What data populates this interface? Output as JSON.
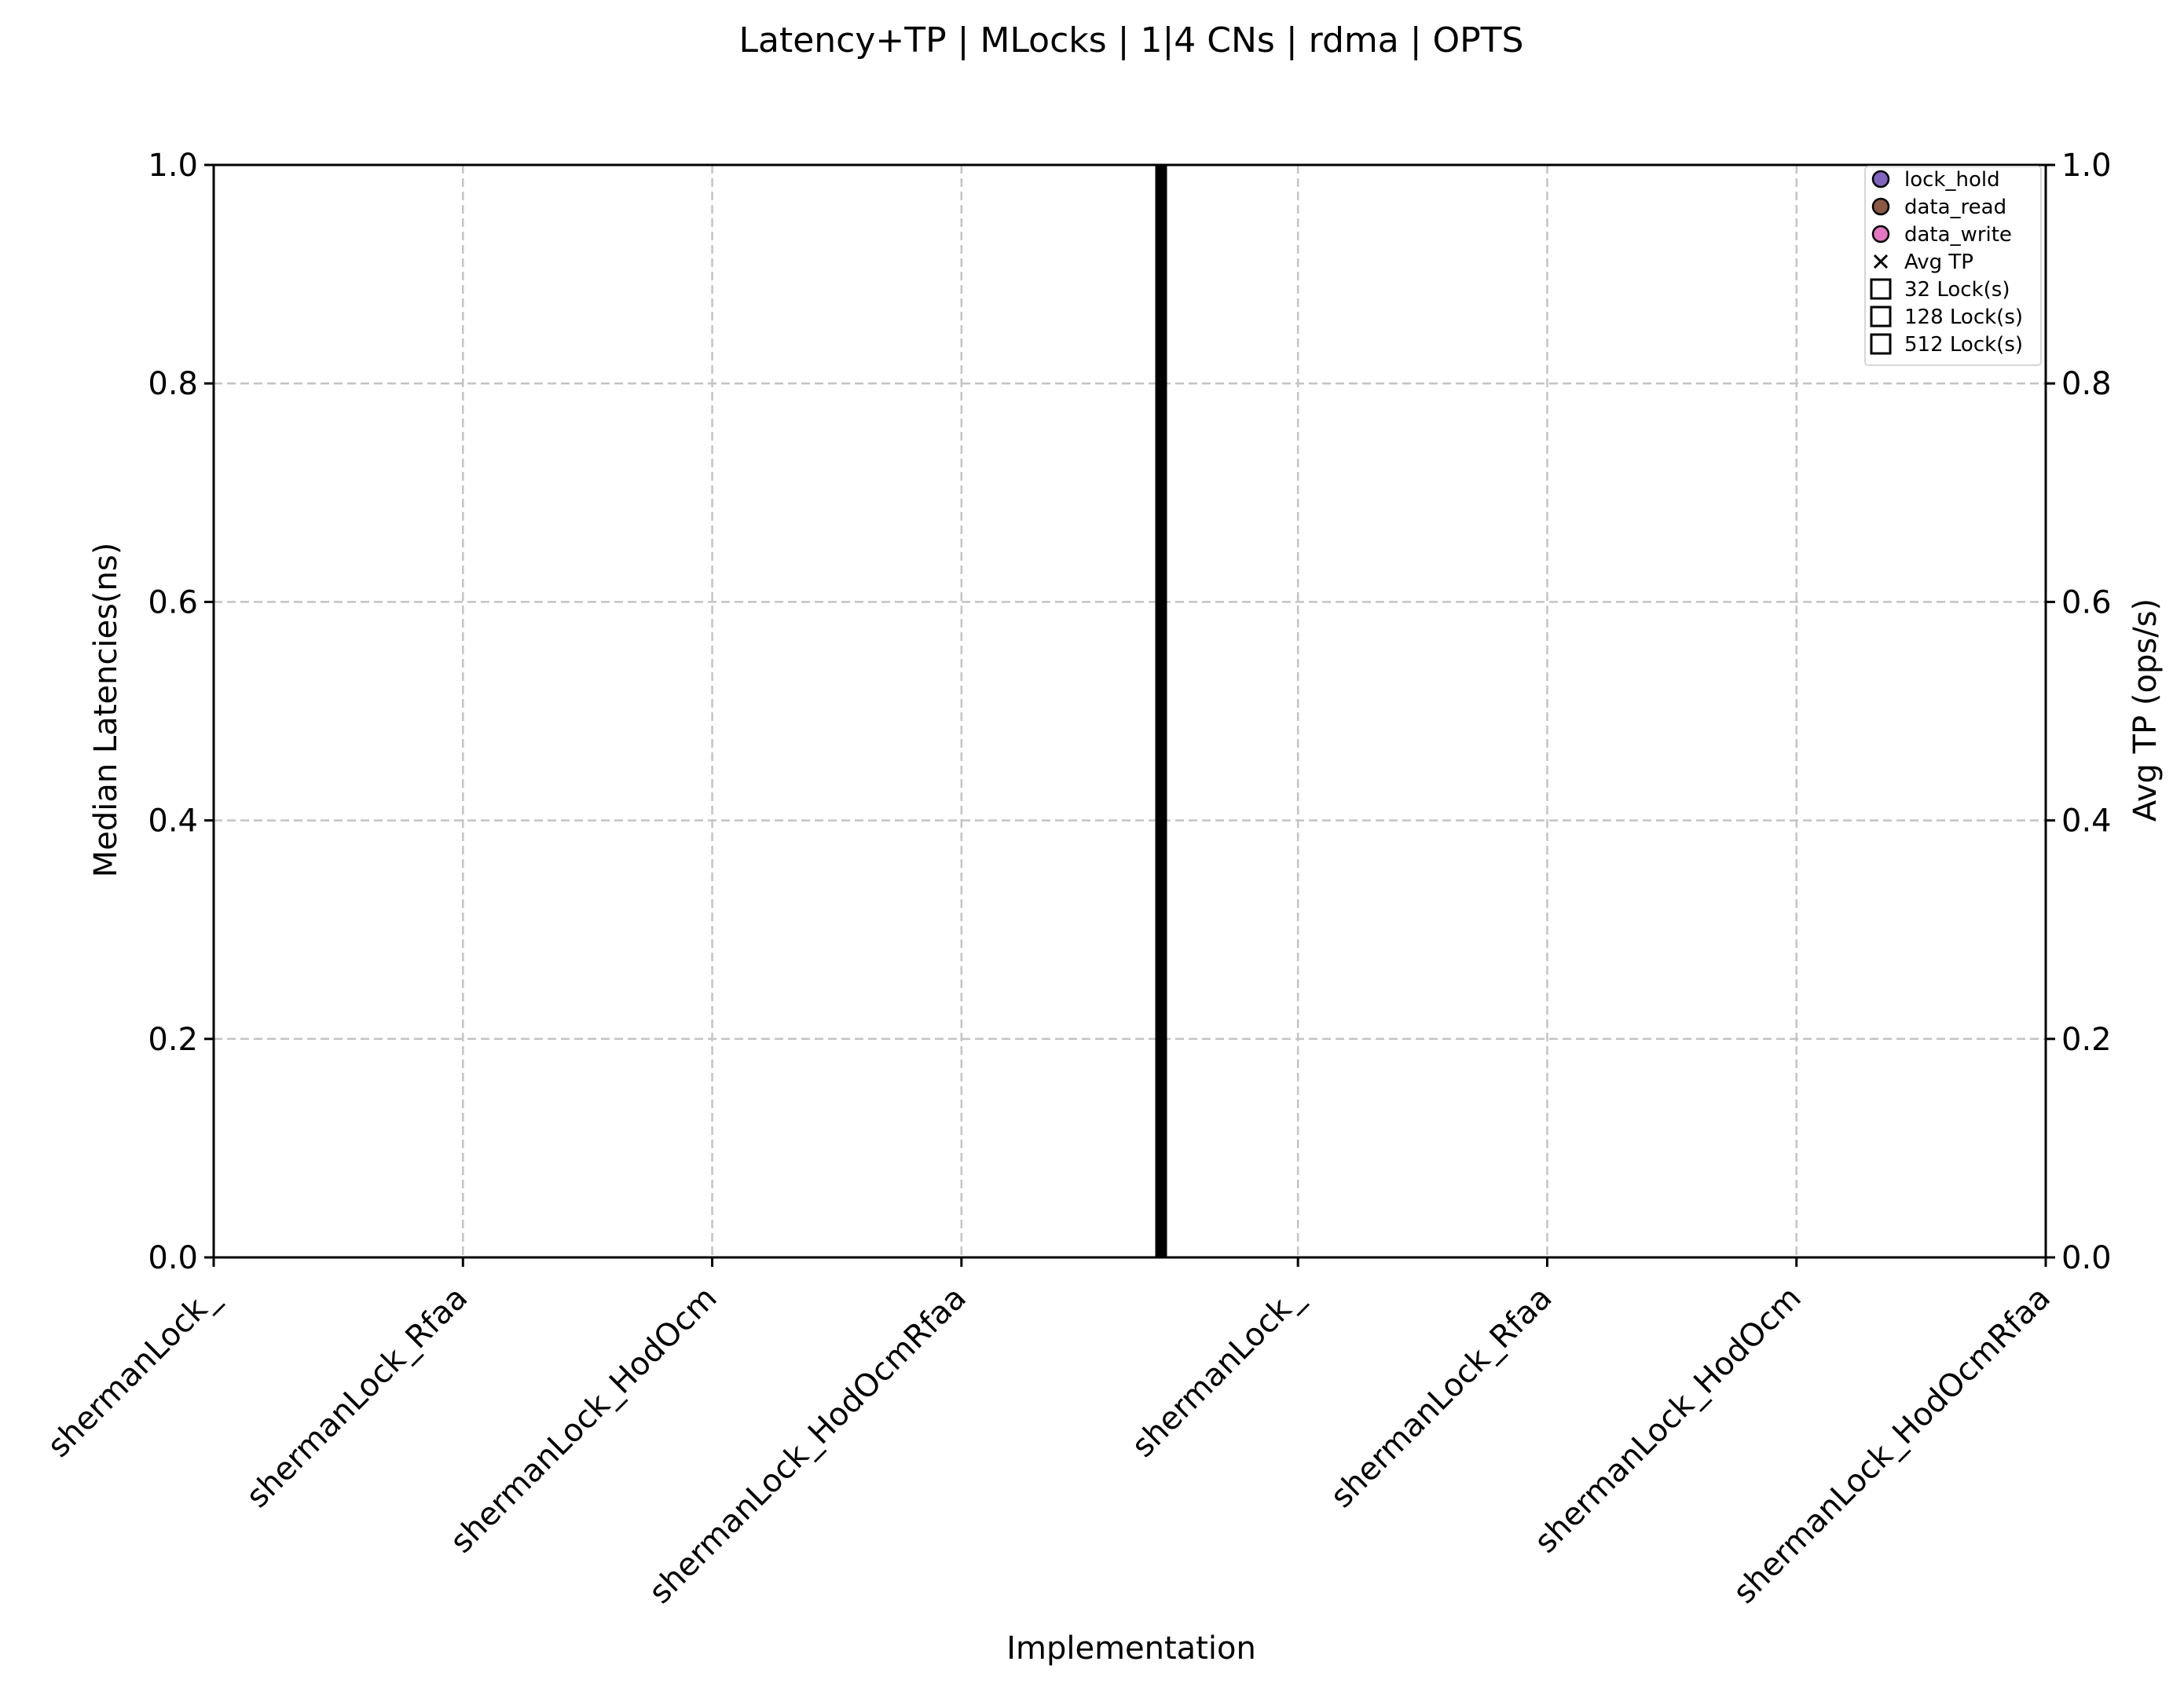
{
  "chart_data": {
    "type": "scatter",
    "title": "Latency+TP | MLocks | 1|4 CNs | rdma | OPTS",
    "xlabel": "Implementation",
    "ylabel": "Median Latencies(ns)",
    "y2label": "Avg TP (ops/s)",
    "ylim": [
      0,
      1
    ],
    "y2lim": [
      0,
      1
    ],
    "yticks": [
      "0.0",
      "0.2",
      "0.4",
      "0.6",
      "0.8",
      "1.0"
    ],
    "y2ticks": [
      "0.0",
      "0.2",
      "0.4",
      "0.6",
      "0.8",
      "1.0"
    ],
    "categories": [
      "shermanLock_",
      "shermanLock_Rfaa",
      "shermanLock_HodOcm",
      "shermanLock_HodOcmRfaa",
      "shermanLock_",
      "shermanLock_Rfaa",
      "shermanLock_HodOcm",
      "shermanLock_HodOcmRfaa"
    ],
    "grid": true,
    "legend_position": "top-right",
    "legend": [
      {
        "label": "lock_hold",
        "marker": "circle",
        "color": "#8064bf"
      },
      {
        "label": "data_read",
        "marker": "circle",
        "color": "#8c5a44"
      },
      {
        "label": "data_write",
        "marker": "circle",
        "color": "#e377c2"
      },
      {
        "label": "Avg TP",
        "marker": "x",
        "color": "#000000"
      },
      {
        "label": "32 Lock(s)",
        "marker": "square",
        "color": "#ffffff"
      },
      {
        "label": "128 Lock(s)",
        "marker": "square",
        "color": "#ffffff"
      },
      {
        "label": "512 Lock(s)",
        "marker": "square",
        "color": "#ffffff"
      }
    ],
    "series": []
  }
}
